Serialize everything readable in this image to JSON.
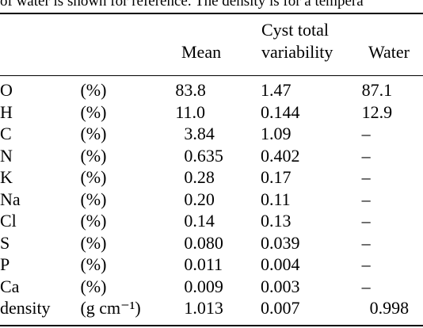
{
  "caption": "of water is shown for reference. The density is for a tempera",
  "headers": {
    "mean": "Mean",
    "cyst_line1": "Cyst total",
    "cyst_line2": "variability",
    "water": "Water"
  },
  "rows": [
    {
      "element": "O",
      "unit": "(%)",
      "mean": "83.8",
      "variability": "1.47",
      "water": "87.1"
    },
    {
      "element": "H",
      "unit": "(%)",
      "mean": "11.0",
      "variability": "0.144",
      "water": "12.9"
    },
    {
      "element": "C",
      "unit": "(%)",
      "mean": "3.84",
      "variability": "1.09",
      "water": "–"
    },
    {
      "element": "N",
      "unit": "(%)",
      "mean": "0.635",
      "variability": "0.402",
      "water": "–"
    },
    {
      "element": "K",
      "unit": "(%)",
      "mean": "0.28",
      "variability": "0.17",
      "water": "–"
    },
    {
      "element": "Na",
      "unit": "(%)",
      "mean": "0.20",
      "variability": "0.11",
      "water": "–"
    },
    {
      "element": "Cl",
      "unit": "(%)",
      "mean": "0.14",
      "variability": "0.13",
      "water": "–"
    },
    {
      "element": "S",
      "unit": "(%)",
      "mean": "0.080",
      "variability": "0.039",
      "water": "–"
    },
    {
      "element": "P",
      "unit": "(%)",
      "mean": "0.011",
      "variability": "0.004",
      "water": "–"
    },
    {
      "element": "Ca",
      "unit": "(%)",
      "mean": "0.009",
      "variability": "0.003",
      "water": "–"
    },
    {
      "element": "density",
      "unit": "(g cm⁻¹)",
      "mean": "1.013",
      "variability": "0.007",
      "water": "0.998"
    }
  ]
}
